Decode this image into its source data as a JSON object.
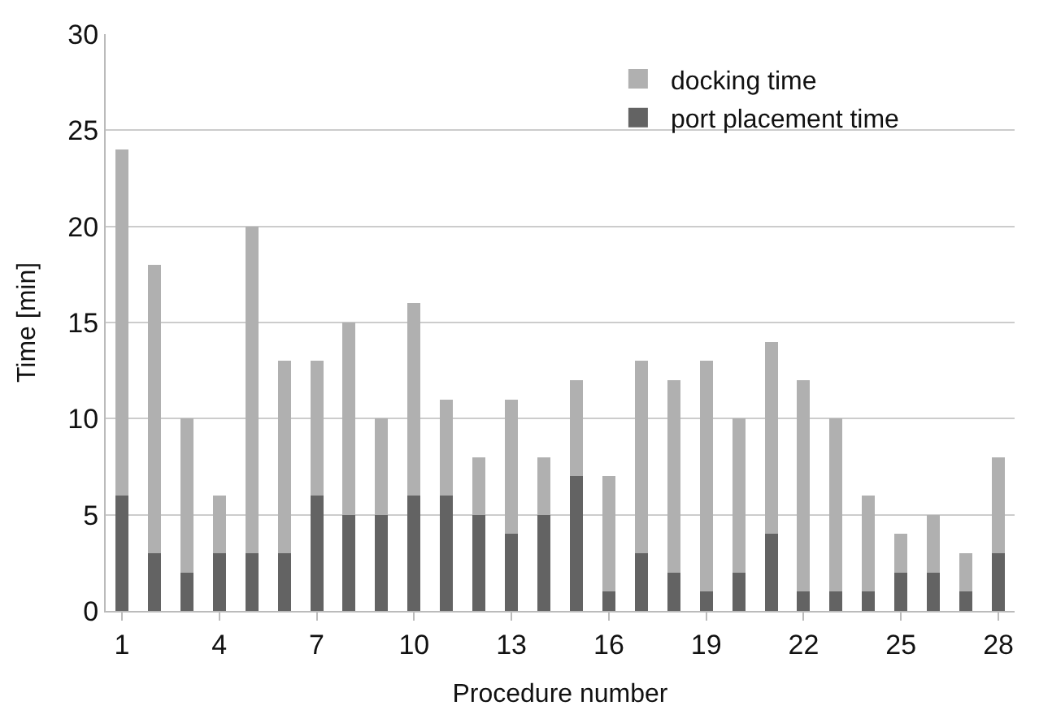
{
  "chart_data": {
    "type": "bar",
    "stacked": true,
    "xlabel": "Procedure number",
    "ylabel": "Time [min]",
    "categories": [
      "1",
      null,
      null,
      "4",
      null,
      null,
      "7",
      null,
      null,
      "10",
      null,
      null,
      "13",
      null,
      null,
      "16",
      null,
      null,
      "19",
      null,
      null,
      "22",
      null,
      null,
      "25",
      null,
      null,
      "28"
    ],
    "series": [
      {
        "name": "port placement time",
        "color": "#636363",
        "values": [
          6,
          3,
          2,
          3,
          3,
          3,
          6,
          5,
          5,
          6,
          6,
          5,
          4,
          5,
          7,
          1,
          3,
          2,
          1,
          2,
          4,
          1,
          1,
          1,
          2,
          2,
          1,
          3
        ]
      },
      {
        "name": "docking time",
        "color": "#b0b0b0",
        "values": [
          18,
          15,
          8,
          3,
          17,
          10,
          7,
          10,
          5,
          10,
          5,
          3,
          7,
          3,
          5,
          6,
          10,
          10,
          12,
          8,
          10,
          11,
          9,
          5,
          2,
          3,
          2,
          5
        ]
      }
    ],
    "ylim": [
      0,
      30
    ],
    "yticks": [
      0,
      5,
      10,
      15,
      20,
      25,
      30
    ],
    "grid": "y",
    "legend": "top right"
  }
}
